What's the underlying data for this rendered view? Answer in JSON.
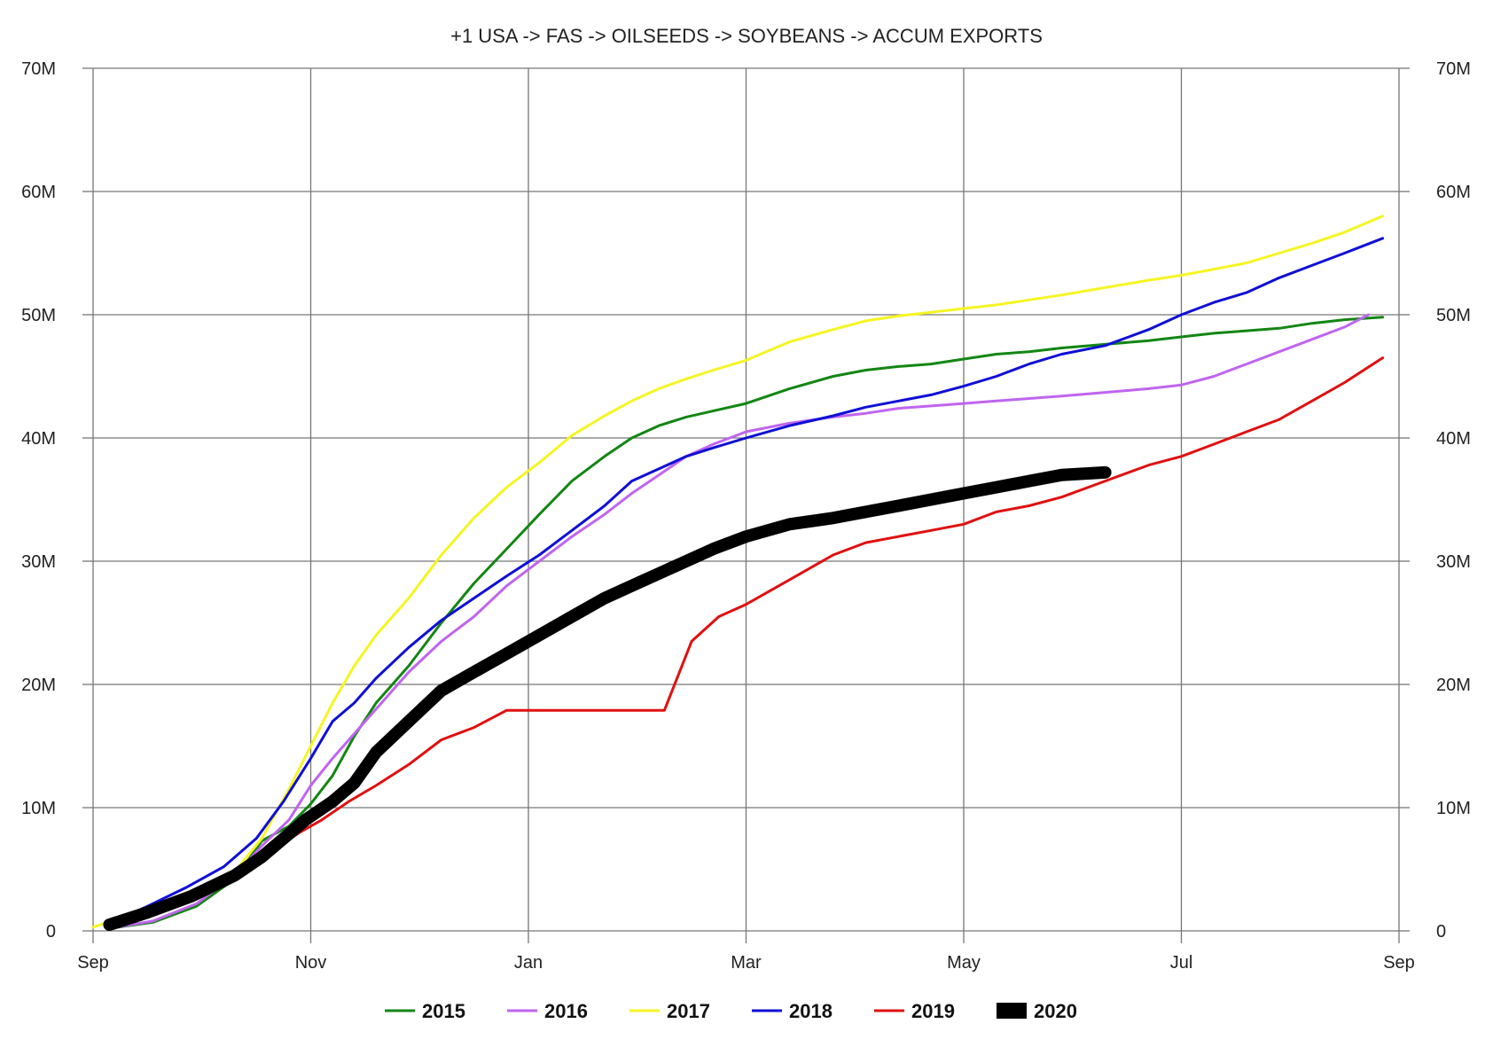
{
  "chart_data": {
    "type": "line",
    "title": "+1 USA -> FAS -> OILSEEDS -> SOYBEANS -> ACCUM EXPORTS",
    "xlabel": "",
    "ylabel": "",
    "x_ticks": [
      "Sep",
      "Nov",
      "Jan",
      "Mar",
      "May",
      "Jul",
      "Sep"
    ],
    "x_tick_positions": [
      0,
      2,
      4,
      6,
      8,
      10,
      12
    ],
    "xlim": [
      0,
      12
    ],
    "y_ticks": [
      "0",
      "10M",
      "20M",
      "30M",
      "40M",
      "50M",
      "60M",
      "70M"
    ],
    "y_tick_values": [
      0,
      10,
      20,
      30,
      40,
      50,
      60,
      70
    ],
    "ylim": [
      0,
      70
    ],
    "y_unit": "millions",
    "grid": true,
    "legend_position": "bottom",
    "series": [
      {
        "name": "2015",
        "color": "#138613",
        "width": 3,
        "x": [
          0.15,
          0.55,
          0.95,
          1.3,
          1.55,
          1.8,
          2.0,
          2.2,
          2.4,
          2.6,
          2.9,
          3.2,
          3.5,
          3.8,
          4.1,
          4.4,
          4.7,
          4.95,
          5.2,
          5.45,
          5.7,
          6.0,
          6.4,
          6.8,
          7.1,
          7.4,
          7.7,
          8.0,
          8.3,
          8.6,
          8.9,
          9.3,
          9.7,
          10.0,
          10.3,
          10.6,
          10.9,
          11.2,
          11.5,
          11.85
        ],
        "y": [
          0.2,
          0.7,
          2.0,
          4.2,
          7.3,
          8.5,
          10.3,
          12.6,
          15.8,
          18.5,
          21.5,
          25.0,
          28.2,
          31.0,
          33.8,
          36.5,
          38.5,
          40.0,
          41.0,
          41.7,
          42.2,
          42.8,
          44.0,
          45.0,
          45.5,
          45.8,
          46.0,
          46.4,
          46.8,
          47.0,
          47.3,
          47.6,
          47.9,
          48.2,
          48.5,
          48.7,
          48.9,
          49.3,
          49.6,
          49.8
        ]
      },
      {
        "name": "2016",
        "color": "#c065ef",
        "width": 3,
        "x": [
          0.15,
          0.55,
          0.95,
          1.3,
          1.55,
          1.8,
          2.0,
          2.2,
          2.4,
          2.6,
          2.9,
          3.2,
          3.5,
          3.8,
          4.1,
          4.4,
          4.7,
          4.95,
          5.2,
          5.45,
          5.7,
          6.0,
          6.4,
          6.8,
          7.1,
          7.4,
          7.7,
          8.0,
          8.3,
          8.6,
          8.9,
          9.3,
          9.7,
          10.0,
          10.3,
          10.6,
          10.9,
          11.2,
          11.5,
          11.72
        ],
        "y": [
          0.2,
          0.8,
          2.2,
          4.5,
          6.9,
          9.0,
          11.8,
          14.0,
          16.0,
          18.0,
          21.0,
          23.5,
          25.5,
          28.0,
          30.0,
          32.0,
          33.8,
          35.5,
          37.0,
          38.5,
          39.5,
          40.5,
          41.2,
          41.7,
          42.0,
          42.4,
          42.6,
          42.8,
          43.0,
          43.2,
          43.4,
          43.7,
          44.0,
          44.3,
          45.0,
          46.0,
          47.0,
          48.0,
          49.0,
          50.0
        ]
      },
      {
        "name": "2017",
        "color": "#f5f523",
        "width": 3,
        "x": [
          0.0,
          0.4,
          0.9,
          1.3,
          1.55,
          1.8,
          2.0,
          2.2,
          2.4,
          2.6,
          2.9,
          3.2,
          3.5,
          3.8,
          4.1,
          4.4,
          4.7,
          4.95,
          5.2,
          5.45,
          5.7,
          6.0,
          6.4,
          6.8,
          7.1,
          7.4,
          7.7,
          8.0,
          8.3,
          8.6,
          8.9,
          9.3,
          9.7,
          10.0,
          10.3,
          10.6,
          10.9,
          11.2,
          11.5,
          11.85
        ],
        "y": [
          0.3,
          1.5,
          3.0,
          4.8,
          7.5,
          11.5,
          15.0,
          18.5,
          21.5,
          24.0,
          27.0,
          30.5,
          33.5,
          36.0,
          38.0,
          40.2,
          41.8,
          43.0,
          44.0,
          44.8,
          45.5,
          46.3,
          47.8,
          48.8,
          49.5,
          49.9,
          50.2,
          50.5,
          50.8,
          51.2,
          51.6,
          52.2,
          52.8,
          53.2,
          53.7,
          54.2,
          55.0,
          55.8,
          56.7,
          58.0
        ]
      },
      {
        "name": "2018",
        "color": "#0f0fd6",
        "width": 3,
        "x": [
          0.15,
          0.5,
          0.85,
          1.2,
          1.5,
          1.75,
          2.0,
          2.2,
          2.4,
          2.6,
          2.9,
          3.2,
          3.5,
          3.8,
          4.1,
          4.4,
          4.7,
          4.95,
          5.2,
          5.45,
          5.7,
          6.0,
          6.4,
          6.8,
          7.1,
          7.4,
          7.7,
          8.0,
          8.3,
          8.6,
          8.9,
          9.3,
          9.7,
          10.0,
          10.3,
          10.6,
          10.9,
          11.2,
          11.5,
          11.85
        ],
        "y": [
          0.6,
          2.0,
          3.5,
          5.2,
          7.5,
          10.5,
          14.0,
          17.0,
          18.5,
          20.5,
          23.0,
          25.2,
          27.0,
          28.8,
          30.5,
          32.5,
          34.5,
          36.5,
          37.5,
          38.5,
          39.2,
          40.0,
          41.0,
          41.8,
          42.5,
          43.0,
          43.5,
          44.2,
          45.0,
          46.0,
          46.8,
          47.5,
          48.8,
          50.0,
          51.0,
          51.8,
          53.0,
          54.0,
          55.0,
          56.2
        ]
      },
      {
        "name": "2019",
        "color": "#e01010",
        "width": 3,
        "x": [
          0.15,
          0.55,
          0.95,
          1.3,
          1.6,
          1.9,
          2.1,
          2.35,
          2.6,
          2.9,
          3.2,
          3.5,
          3.8,
          4.1,
          4.4,
          4.7,
          5.25,
          5.5,
          5.75,
          6.0,
          6.4,
          6.8,
          7.1,
          7.4,
          7.7,
          8.0,
          8.3,
          8.6,
          8.9,
          9.3,
          9.7,
          10.0,
          10.3,
          10.6,
          10.9,
          11.2,
          11.5,
          11.85
        ],
        "y": [
          0.5,
          1.5,
          2.8,
          4.5,
          6.2,
          8.0,
          9.0,
          10.5,
          11.8,
          13.5,
          15.5,
          16.5,
          17.9,
          17.9,
          17.9,
          17.9,
          17.9,
          23.5,
          25.5,
          26.5,
          28.5,
          30.5,
          31.5,
          32.0,
          32.5,
          33.0,
          34.0,
          34.5,
          35.2,
          36.5,
          37.8,
          38.5,
          39.5,
          40.5,
          41.5,
          43.0,
          44.5,
          46.5
        ]
      },
      {
        "name": "2020",
        "color": "#000000",
        "width": 14,
        "x": [
          0.15,
          0.5,
          0.9,
          1.3,
          1.55,
          1.75,
          1.95,
          2.2,
          2.4,
          2.6,
          2.9,
          3.2,
          3.5,
          3.8,
          4.1,
          4.4,
          4.7,
          4.95,
          5.2,
          5.45,
          5.7,
          6.0,
          6.4,
          6.8,
          7.1,
          7.4,
          7.7,
          8.0,
          8.3,
          8.6,
          8.9,
          9.3
        ],
        "y": [
          0.5,
          1.5,
          2.8,
          4.5,
          6.0,
          7.5,
          9.0,
          10.5,
          12.0,
          14.5,
          17.0,
          19.5,
          21.0,
          22.5,
          24.0,
          25.5,
          27.0,
          28.0,
          29.0,
          30.0,
          31.0,
          32.0,
          33.0,
          33.5,
          34.0,
          34.5,
          35.0,
          35.5,
          36.0,
          36.5,
          37.0,
          37.2
        ]
      }
    ]
  }
}
